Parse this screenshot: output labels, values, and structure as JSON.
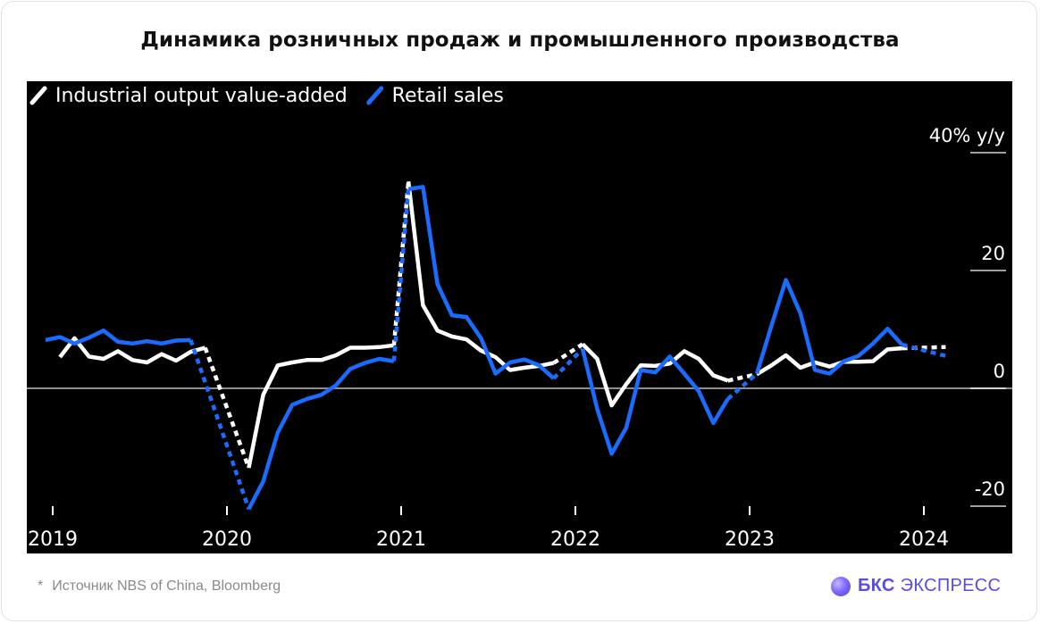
{
  "title": "Динамика розничных продаж и промышленного производства",
  "footnote": {
    "star": "*",
    "text": "Источник NBS of China, Bloomberg"
  },
  "brand": {
    "bold": "БКС",
    "rest": "ЭКСПРЕСС",
    "logo_icon": "bcs-orb-logo-icon"
  },
  "chart_data": {
    "type": "line",
    "title": "",
    "xlabel": "",
    "ylabel": "y/y",
    "unit_label": "40% y/y",
    "ylim": [
      -20,
      40
    ],
    "yticks": [
      {
        "value": 40,
        "label": "40% y/y"
      },
      {
        "value": 20,
        "label": "20"
      },
      {
        "value": 0,
        "label": "0"
      },
      {
        "value": -20,
        "label": "-20"
      }
    ],
    "xlim": [
      2019.0,
      2024.2
    ],
    "xticks": [
      {
        "value": 2019,
        "label": "2019"
      },
      {
        "value": 2020,
        "label": "2020"
      },
      {
        "value": 2021,
        "label": "2021"
      },
      {
        "value": 2022,
        "label": "2022"
      },
      {
        "value": 2023,
        "label": "2023"
      },
      {
        "value": 2024,
        "label": "2024"
      }
    ],
    "legend": {
      "placement": "top-left"
    },
    "zero_line": true,
    "grid": false,
    "series": [
      {
        "name": "Industrial output value-added",
        "color": "#ffffff",
        "segments": [
          {
            "style": "solid",
            "points": [
              [
                "2019-01",
                5.3
              ],
              [
                "2019-02",
                8.5
              ],
              [
                "2019-03",
                5.4
              ],
              [
                "2019-04",
                5.0
              ],
              [
                "2019-05",
                6.3
              ],
              [
                "2019-06",
                4.8
              ],
              [
                "2019-07",
                4.4
              ],
              [
                "2019-08",
                5.8
              ],
              [
                "2019-09",
                4.7
              ],
              [
                "2019-10",
                6.2
              ],
              [
                "2019-11",
                6.9
              ]
            ]
          },
          {
            "style": "dashed",
            "points": [
              [
                "2019-11",
                6.9
              ],
              [
                "2020-02",
                -13.5
              ]
            ]
          },
          {
            "style": "solid",
            "points": [
              [
                "2020-02",
                -13.5
              ],
              [
                "2020-03",
                -1.1
              ],
              [
                "2020-04",
                3.9
              ],
              [
                "2020-05",
                4.4
              ],
              [
                "2020-06",
                4.8
              ],
              [
                "2020-07",
                4.8
              ],
              [
                "2020-08",
                5.6
              ],
              [
                "2020-09",
                6.9
              ],
              [
                "2020-10",
                6.9
              ],
              [
                "2020-11",
                7.0
              ],
              [
                "2020-12",
                7.3
              ]
            ]
          },
          {
            "style": "dashed",
            "points": [
              [
                "2020-12",
                7.3
              ],
              [
                "2021-01",
                35.1
              ]
            ]
          },
          {
            "style": "solid",
            "points": [
              [
                "2021-01",
                35.1
              ],
              [
                "2021-02",
                14.1
              ],
              [
                "2021-03",
                9.8
              ],
              [
                "2021-04",
                8.8
              ],
              [
                "2021-05",
                8.3
              ],
              [
                "2021-06",
                6.4
              ],
              [
                "2021-07",
                5.3
              ],
              [
                "2021-08",
                3.1
              ],
              [
                "2021-09",
                3.5
              ],
              [
                "2021-10",
                3.8
              ],
              [
                "2021-11",
                4.3
              ]
            ]
          },
          {
            "style": "dashed",
            "points": [
              [
                "2021-11",
                4.3
              ],
              [
                "2022-01",
                7.5
              ]
            ]
          },
          {
            "style": "solid",
            "points": [
              [
                "2022-01",
                7.5
              ],
              [
                "2022-02",
                5.0
              ],
              [
                "2022-03",
                -2.9
              ],
              [
                "2022-04",
                0.7
              ],
              [
                "2022-05",
                3.9
              ],
              [
                "2022-06",
                3.8
              ],
              [
                "2022-07",
                4.2
              ],
              [
                "2022-08",
                6.3
              ],
              [
                "2022-09",
                5.0
              ],
              [
                "2022-10",
                2.2
              ],
              [
                "2022-11",
                1.3
              ]
            ]
          },
          {
            "style": "dashed",
            "points": [
              [
                "2022-11",
                1.3
              ],
              [
                "2023-01",
                2.4
              ]
            ]
          },
          {
            "style": "solid",
            "points": [
              [
                "2023-01",
                2.4
              ],
              [
                "2023-02",
                3.9
              ],
              [
                "2023-03",
                5.6
              ],
              [
                "2023-04",
                3.5
              ],
              [
                "2023-05",
                4.4
              ],
              [
                "2023-06",
                3.7
              ],
              [
                "2023-07",
                4.5
              ],
              [
                "2023-08",
                4.5
              ],
              [
                "2023-09",
                4.6
              ],
              [
                "2023-10",
                6.6
              ],
              [
                "2023-11",
                6.8
              ]
            ]
          },
          {
            "style": "dashed",
            "points": [
              [
                "2023-11",
                6.8
              ],
              [
                "2024-02",
                7.0
              ]
            ]
          }
        ]
      },
      {
        "name": "Retail sales",
        "color": "#1a6cff",
        "segments": [
          {
            "style": "solid",
            "points": [
              [
                "2018-12",
                8.2
              ],
              [
                "2019-01",
                8.7
              ],
              [
                "2019-02",
                7.6
              ],
              [
                "2019-03",
                8.6
              ],
              [
                "2019-04",
                9.8
              ],
              [
                "2019-05",
                7.9
              ],
              [
                "2019-06",
                7.6
              ],
              [
                "2019-07",
                8.0
              ],
              [
                "2019-08",
                7.6
              ],
              [
                "2019-09",
                8.1
              ],
              [
                "2019-10",
                8.2
              ]
            ]
          },
          {
            "style": "dashed",
            "points": [
              [
                "2019-10",
                8.2
              ],
              [
                "2020-02",
                -20.5
              ]
            ]
          },
          {
            "style": "solid",
            "points": [
              [
                "2020-02",
                -20.5
              ],
              [
                "2020-03",
                -15.8
              ],
              [
                "2020-04",
                -7.5
              ],
              [
                "2020-05",
                -2.8
              ],
              [
                "2020-06",
                -1.8
              ],
              [
                "2020-07",
                -1.1
              ],
              [
                "2020-08",
                0.5
              ],
              [
                "2020-09",
                3.3
              ],
              [
                "2020-10",
                4.3
              ],
              [
                "2020-11",
                5.0
              ],
              [
                "2020-12",
                4.6
              ]
            ]
          },
          {
            "style": "dashed",
            "points": [
              [
                "2020-12",
                4.6
              ],
              [
                "2021-01",
                33.8
              ]
            ]
          },
          {
            "style": "solid",
            "points": [
              [
                "2021-01",
                33.8
              ],
              [
                "2021-02",
                34.2
              ],
              [
                "2021-03",
                17.7
              ],
              [
                "2021-04",
                12.4
              ],
              [
                "2021-05",
                12.1
              ],
              [
                "2021-06",
                8.5
              ],
              [
                "2021-07",
                2.5
              ],
              [
                "2021-08",
                4.4
              ],
              [
                "2021-09",
                4.9
              ],
              [
                "2021-10",
                3.9
              ],
              [
                "2021-11",
                1.7
              ]
            ]
          },
          {
            "style": "dashed",
            "points": [
              [
                "2021-11",
                1.7
              ],
              [
                "2022-01",
                6.7
              ]
            ]
          },
          {
            "style": "solid",
            "points": [
              [
                "2022-01",
                6.7
              ],
              [
                "2022-02",
                -3.5
              ],
              [
                "2022-03",
                -11.1
              ],
              [
                "2022-04",
                -6.7
              ],
              [
                "2022-05",
                3.1
              ],
              [
                "2022-06",
                2.7
              ],
              [
                "2022-07",
                5.4
              ],
              [
                "2022-08",
                2.5
              ],
              [
                "2022-09",
                -0.5
              ],
              [
                "2022-10",
                -5.9
              ],
              [
                "2022-11",
                -1.8
              ]
            ]
          },
          {
            "style": "dashed",
            "points": [
              [
                "2022-11",
                -1.8
              ],
              [
                "2023-01",
                2.5
              ]
            ]
          },
          {
            "style": "solid",
            "points": [
              [
                "2023-01",
                2.5
              ],
              [
                "2023-02",
                10.6
              ],
              [
                "2023-03",
                18.4
              ],
              [
                "2023-04",
                12.7
              ],
              [
                "2023-05",
                3.1
              ],
              [
                "2023-06",
                2.5
              ],
              [
                "2023-07",
                4.6
              ],
              [
                "2023-08",
                5.5
              ],
              [
                "2023-09",
                7.6
              ],
              [
                "2023-10",
                10.1
              ],
              [
                "2023-11",
                7.4
              ]
            ]
          },
          {
            "style": "dashed",
            "points": [
              [
                "2023-11",
                7.4
              ],
              [
                "2024-02",
                5.5
              ]
            ]
          }
        ]
      }
    ]
  }
}
